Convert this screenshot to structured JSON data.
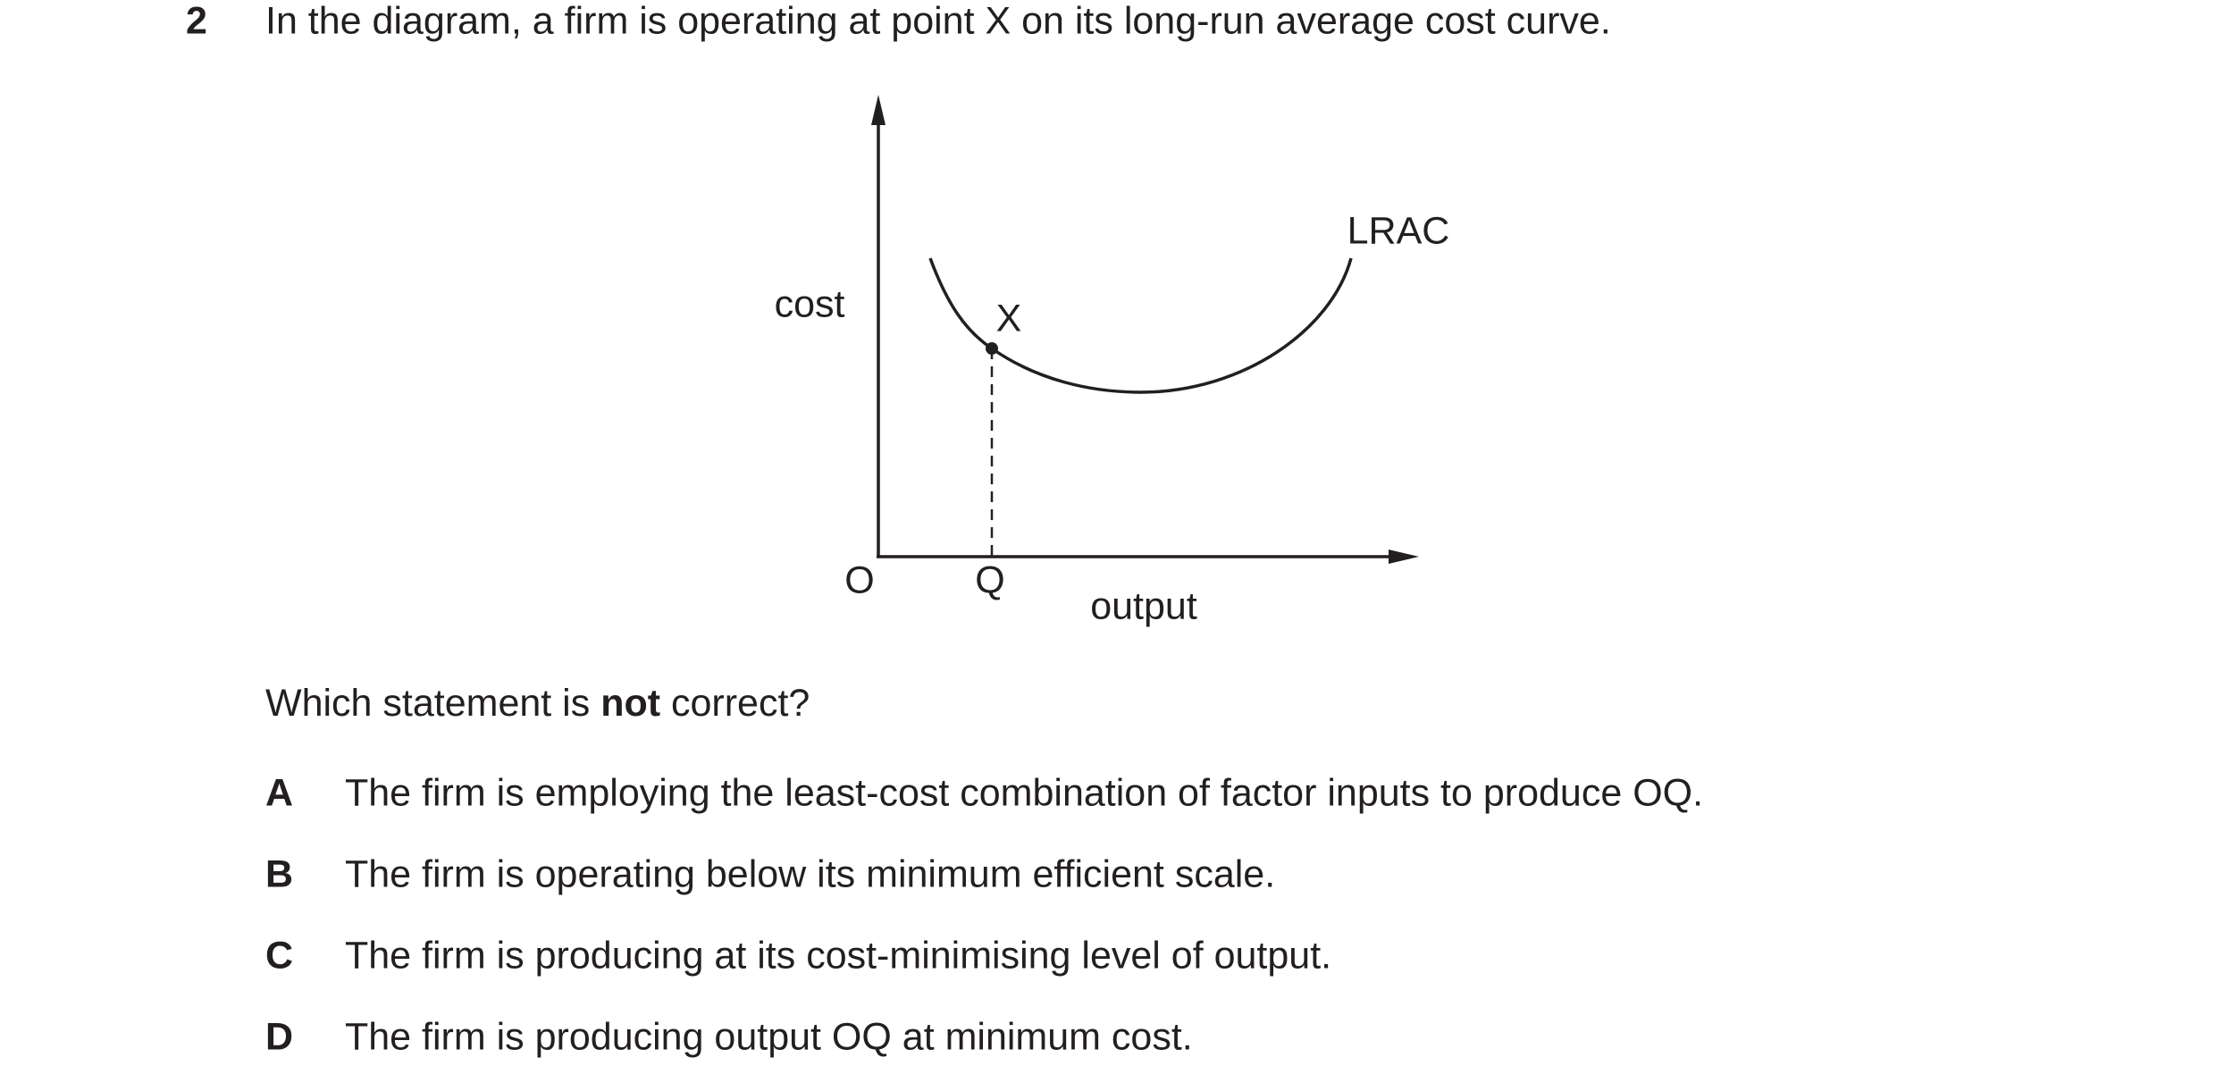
{
  "question": {
    "number": "2",
    "text": "In the diagram, a firm is operating at point X on its long-run average cost curve."
  },
  "diagram": {
    "y_label": "cost",
    "x_label": "output",
    "origin": "O",
    "point": "X",
    "point_output": "Q",
    "curve": "LRAC"
  },
  "prompt": {
    "before": "Which statement is",
    "emphasis": "not",
    "after": "correct?"
  },
  "options": [
    {
      "letter": "A",
      "text": "The firm is employing the least-cost combination of factor inputs to produce OQ."
    },
    {
      "letter": "B",
      "text": "The firm is operating below its minimum efficient scale."
    },
    {
      "letter": "C",
      "text": "The firm is producing at its cost-minimising level of output."
    },
    {
      "letter": "D",
      "text": "The firm is producing output OQ at minimum cost."
    }
  ]
}
